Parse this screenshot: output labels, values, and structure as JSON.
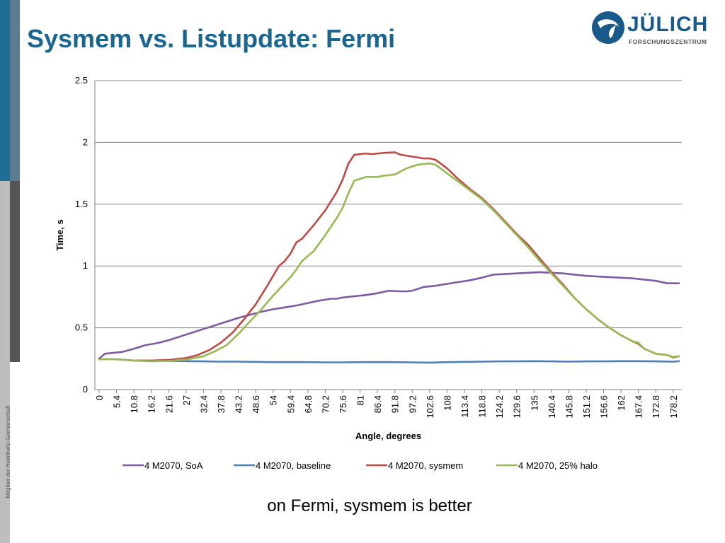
{
  "slide": {
    "title": "Sysmem vs. Listupdate: Fermi",
    "caption": "on Fermi, sysmem is better",
    "side_note": "Mitglied der Helmholtz-Gemeinschaft"
  },
  "logo": {
    "name": "JÜLICH",
    "subtitle": "FORSCHUNGSZENTRUM"
  },
  "colors": {
    "title": "#1a6690",
    "soa": "#7e5aa2",
    "baseline": "#4a7ebb",
    "sysmem": "#be4b48",
    "halo": "#98b954"
  },
  "chart_data": {
    "type": "line",
    "title": "",
    "xlabel": "Angle, degrees",
    "ylabel": "Time, s",
    "ylim": [
      0,
      2.5
    ],
    "yticks": [
      "0",
      "0.5",
      "1",
      "1.5",
      "2",
      "2.5"
    ],
    "xlabels": [
      "0",
      "5.4",
      "10.8",
      "16.2",
      "21.6",
      "27",
      "32.4",
      "37.8",
      "43.2",
      "48.6",
      "54",
      "59.4",
      "64.8",
      "70.2",
      "75.6",
      "81",
      "86.4",
      "91.8",
      "97.2",
      "102.6",
      "108",
      "113.4",
      "118.8",
      "124.2",
      "129.6",
      "135",
      "140.4",
      "145.8",
      "151.2",
      "156.6",
      "162",
      "167.4",
      "172.8",
      "178.2"
    ],
    "xlim": [
      0,
      180
    ],
    "grid": true,
    "legend": "bottom",
    "series": [
      {
        "name": "4 M2070, SoA",
        "color": "#7e5aa2",
        "points": [
          [
            0,
            0.25
          ],
          [
            1.8,
            0.29
          ],
          [
            5.4,
            0.3
          ],
          [
            7.2,
            0.305
          ],
          [
            10.8,
            0.33
          ],
          [
            14.4,
            0.36
          ],
          [
            18,
            0.375
          ],
          [
            21.6,
            0.4
          ],
          [
            25.2,
            0.43
          ],
          [
            28.8,
            0.46
          ],
          [
            32.4,
            0.49
          ],
          [
            36,
            0.52
          ],
          [
            39.6,
            0.55
          ],
          [
            43.2,
            0.58
          ],
          [
            46.8,
            0.605
          ],
          [
            50.4,
            0.63
          ],
          [
            54,
            0.65
          ],
          [
            57.6,
            0.665
          ],
          [
            61.2,
            0.68
          ],
          [
            64.8,
            0.7
          ],
          [
            68.4,
            0.72
          ],
          [
            72,
            0.735
          ],
          [
            73.8,
            0.735
          ],
          [
            75.6,
            0.745
          ],
          [
            79.2,
            0.755
          ],
          [
            82.8,
            0.765
          ],
          [
            86.4,
            0.78
          ],
          [
            90,
            0.8
          ],
          [
            93.6,
            0.795
          ],
          [
            95.4,
            0.795
          ],
          [
            97.2,
            0.8
          ],
          [
            100.8,
            0.83
          ],
          [
            104.4,
            0.84
          ],
          [
            108,
            0.855
          ],
          [
            111.6,
            0.87
          ],
          [
            115.2,
            0.885
          ],
          [
            118.8,
            0.905
          ],
          [
            122.4,
            0.93
          ],
          [
            126,
            0.935
          ],
          [
            129.6,
            0.94
          ],
          [
            133.2,
            0.945
          ],
          [
            136.8,
            0.95
          ],
          [
            140.4,
            0.945
          ],
          [
            144,
            0.94
          ],
          [
            147.6,
            0.93
          ],
          [
            151.2,
            0.92
          ],
          [
            154.8,
            0.915
          ],
          [
            158.4,
            0.91
          ],
          [
            162,
            0.905
          ],
          [
            165.6,
            0.9
          ],
          [
            169.2,
            0.89
          ],
          [
            172.8,
            0.88
          ],
          [
            176.4,
            0.86
          ],
          [
            178.2,
            0.86
          ],
          [
            180,
            0.86
          ]
        ]
      },
      {
        "name": "4 M2070, baseline",
        "color": "#4a7ebb",
        "points": [
          [
            0,
            0.245
          ],
          [
            5.4,
            0.245
          ],
          [
            10.8,
            0.235
          ],
          [
            16.2,
            0.232
          ],
          [
            21.6,
            0.232
          ],
          [
            27,
            0.23
          ],
          [
            32.4,
            0.228
          ],
          [
            37.8,
            0.226
          ],
          [
            43.2,
            0.226
          ],
          [
            48.6,
            0.224
          ],
          [
            54,
            0.222
          ],
          [
            59.4,
            0.222
          ],
          [
            64.8,
            0.222
          ],
          [
            70.2,
            0.22
          ],
          [
            75.6,
            0.22
          ],
          [
            81,
            0.222
          ],
          [
            86.4,
            0.222
          ],
          [
            91.8,
            0.222
          ],
          [
            97.2,
            0.22
          ],
          [
            102.6,
            0.218
          ],
          [
            108,
            0.222
          ],
          [
            113.4,
            0.224
          ],
          [
            118.8,
            0.226
          ],
          [
            124.2,
            0.228
          ],
          [
            129.6,
            0.228
          ],
          [
            135,
            0.23
          ],
          [
            140.4,
            0.228
          ],
          [
            145.8,
            0.226
          ],
          [
            151.2,
            0.228
          ],
          [
            156.6,
            0.228
          ],
          [
            162,
            0.23
          ],
          [
            167.4,
            0.23
          ],
          [
            172.8,
            0.228
          ],
          [
            178.2,
            0.226
          ],
          [
            180,
            0.23
          ]
        ]
      },
      {
        "name": "4 M2070, sysmem",
        "color": "#be4b48",
        "points": [
          [
            0,
            0.245
          ],
          [
            5.4,
            0.245
          ],
          [
            10.8,
            0.235
          ],
          [
            16.2,
            0.235
          ],
          [
            21.6,
            0.24
          ],
          [
            27,
            0.255
          ],
          [
            30.6,
            0.28
          ],
          [
            34.2,
            0.32
          ],
          [
            37.8,
            0.38
          ],
          [
            41.4,
            0.46
          ],
          [
            45,
            0.57
          ],
          [
            48.6,
            0.69
          ],
          [
            52.2,
            0.84
          ],
          [
            55.8,
            1.0
          ],
          [
            57.6,
            1.04
          ],
          [
            59.4,
            1.1
          ],
          [
            61.2,
            1.19
          ],
          [
            63,
            1.22
          ],
          [
            66.6,
            1.33
          ],
          [
            70.2,
            1.45
          ],
          [
            73.8,
            1.6
          ],
          [
            75.6,
            1.7
          ],
          [
            77.4,
            1.83
          ],
          [
            79.2,
            1.9
          ],
          [
            82.8,
            1.91
          ],
          [
            84.6,
            1.905
          ],
          [
            88.2,
            1.915
          ],
          [
            91.8,
            1.92
          ],
          [
            93.6,
            1.9
          ],
          [
            97.2,
            1.885
          ],
          [
            100.8,
            1.87
          ],
          [
            102.6,
            1.87
          ],
          [
            104.4,
            1.86
          ],
          [
            108,
            1.79
          ],
          [
            111.6,
            1.7
          ],
          [
            115.2,
            1.62
          ],
          [
            118.8,
            1.55
          ],
          [
            122.4,
            1.46
          ],
          [
            126,
            1.36
          ],
          [
            129.6,
            1.26
          ],
          [
            133.2,
            1.17
          ],
          [
            136.8,
            1.06
          ],
          [
            140.4,
            0.95
          ],
          [
            144,
            0.85
          ],
          [
            147.6,
            0.74
          ],
          [
            151.2,
            0.65
          ],
          [
            154.8,
            0.57
          ],
          [
            158.4,
            0.5
          ],
          [
            162,
            0.44
          ],
          [
            165.6,
            0.39
          ],
          [
            167.4,
            0.37
          ],
          [
            169.2,
            0.33
          ],
          [
            172.8,
            0.29
          ],
          [
            176.4,
            0.28
          ],
          [
            178.2,
            0.26
          ],
          [
            180,
            0.27
          ]
        ]
      },
      {
        "name": "4 M2070, 25% halo",
        "color": "#98b954",
        "points": [
          [
            0,
            0.245
          ],
          [
            5.4,
            0.245
          ],
          [
            10.8,
            0.235
          ],
          [
            16.2,
            0.228
          ],
          [
            21.6,
            0.232
          ],
          [
            27,
            0.242
          ],
          [
            32.4,
            0.27
          ],
          [
            36,
            0.31
          ],
          [
            39.6,
            0.36
          ],
          [
            43.2,
            0.45
          ],
          [
            46.8,
            0.55
          ],
          [
            50.4,
            0.65
          ],
          [
            54,
            0.76
          ],
          [
            57.6,
            0.86
          ],
          [
            59.4,
            0.91
          ],
          [
            61.2,
            0.97
          ],
          [
            63,
            1.04
          ],
          [
            66.6,
            1.12
          ],
          [
            70.2,
            1.25
          ],
          [
            73.8,
            1.39
          ],
          [
            75.6,
            1.47
          ],
          [
            77.4,
            1.59
          ],
          [
            79.2,
            1.69
          ],
          [
            82.8,
            1.72
          ],
          [
            86.4,
            1.72
          ],
          [
            88.2,
            1.73
          ],
          [
            91.8,
            1.74
          ],
          [
            95.4,
            1.79
          ],
          [
            99,
            1.82
          ],
          [
            102.6,
            1.83
          ],
          [
            104.4,
            1.82
          ],
          [
            108,
            1.75
          ],
          [
            111.6,
            1.68
          ],
          [
            115.2,
            1.61
          ],
          [
            118.8,
            1.54
          ],
          [
            122.4,
            1.45
          ],
          [
            126,
            1.35
          ],
          [
            129.6,
            1.25
          ],
          [
            133.2,
            1.15
          ],
          [
            136.8,
            1.04
          ],
          [
            140.4,
            0.94
          ],
          [
            144,
            0.84
          ],
          [
            147.6,
            0.74
          ],
          [
            151.2,
            0.65
          ],
          [
            154.8,
            0.57
          ],
          [
            158.4,
            0.5
          ],
          [
            162,
            0.44
          ],
          [
            165.6,
            0.39
          ],
          [
            167.4,
            0.38
          ],
          [
            169.2,
            0.33
          ],
          [
            172.8,
            0.29
          ],
          [
            176.4,
            0.28
          ],
          [
            178.2,
            0.265
          ],
          [
            180,
            0.27
          ]
        ]
      }
    ]
  }
}
